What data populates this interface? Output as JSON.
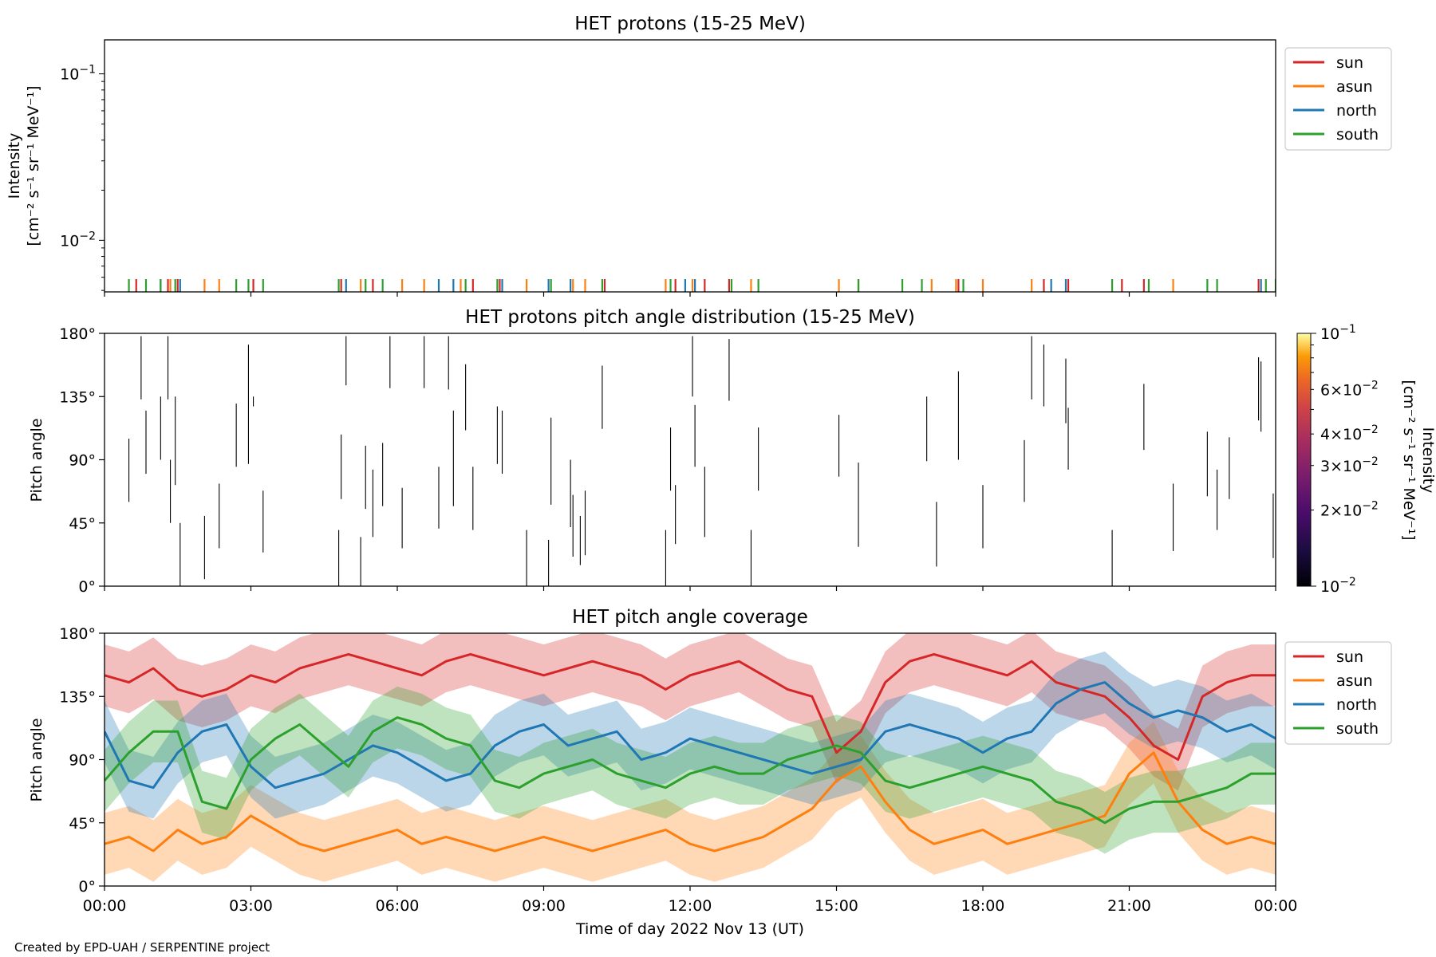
{
  "credit": "Created by EPD-UAH / SERPENTINE project",
  "colors": {
    "sun": "#d62728",
    "asun": "#ff7f0e",
    "north": "#1f77b4",
    "south": "#2ca02c"
  },
  "chart_data": [
    {
      "type": "line",
      "title": "HET protons (15-25 MeV)",
      "ylabel_line1": "Intensity",
      "ylabel_line2": "[cm⁻² s⁻¹ sr⁻¹ MeV⁻¹]",
      "yscale": "log",
      "ylim": [
        0.0049,
        0.16
      ],
      "yticks": [
        {
          "value": 0.01,
          "base": "10",
          "exp": "−2"
        },
        {
          "value": 0.1,
          "base": "10",
          "exp": "−1"
        }
      ],
      "legend": [
        "sun",
        "asun",
        "north",
        "south"
      ],
      "legend_position": "outside-right",
      "series": [
        {
          "name": "sun",
          "hours": [
            0.65,
            1.3,
            1.5,
            3.05,
            4.85,
            5.5,
            7.55,
            8.1,
            10.25,
            11.7,
            12.3,
            12.8,
            15.45,
            17.5,
            19.25,
            19.75,
            20.85,
            21.3,
            23.65
          ]
        },
        {
          "name": "asun",
          "hours": [
            1.35,
            2.05,
            2.35,
            5.25,
            6.1,
            6.55,
            7.3,
            8.65,
            9.6,
            9.85,
            11.5,
            12.05,
            13.25,
            15.05,
            16.95,
            17.45,
            18.0,
            19.0,
            21.9
          ]
        },
        {
          "name": "north",
          "hours": [
            1.15,
            1.55,
            4.95,
            6.85,
            7.15,
            8.15,
            9.1,
            9.55,
            11.9,
            12.1,
            19.4,
            19.7,
            23.7
          ]
        },
        {
          "name": "south",
          "hours": [
            0.5,
            0.85,
            1.15,
            1.45,
            2.7,
            2.95,
            3.25,
            4.8,
            5.35,
            5.7,
            7.4,
            8.05,
            9.15,
            10.2,
            11.6,
            12.85,
            13.4,
            15.45,
            16.35,
            16.75,
            17.6,
            20.65,
            21.4,
            22.6,
            22.8,
            23.8,
            24.0
          ]
        }
      ]
    },
    {
      "type": "heatmap",
      "title": "HET protons pitch angle distribution (15-25 MeV)",
      "ylabel": "Pitch angle",
      "ylim": [
        0,
        180
      ],
      "yticks": [
        "0°",
        "45°",
        "90°",
        "135°",
        "180°"
      ],
      "colorbar": {
        "label_line1": "Intensity",
        "label_line2": "[cm⁻² s⁻¹ sr⁻¹ MeV⁻¹]",
        "scale": "log",
        "range": [
          0.01,
          0.1
        ],
        "colormap": "inferno",
        "ticks": [
          {
            "value": 0.01,
            "mant": "",
            "base": "10",
            "exp": "−2"
          },
          {
            "value": 0.02,
            "mant": "2×",
            "base": "10",
            "exp": "−2"
          },
          {
            "value": 0.03,
            "mant": "3×",
            "base": "10",
            "exp": "−2"
          },
          {
            "value": 0.04,
            "mant": "4×",
            "base": "10",
            "exp": "−2"
          },
          {
            "value": 0.06,
            "mant": "6×",
            "base": "10",
            "exp": "−2"
          },
          {
            "value": 0.1,
            "mant": "",
            "base": "10",
            "exp": "−1"
          }
        ]
      },
      "marks": [
        [
          0.5,
          60,
          105
        ],
        [
          0.75,
          133,
          178
        ],
        [
          0.85,
          80,
          125
        ],
        [
          1.15,
          90,
          135
        ],
        [
          1.3,
          133,
          178
        ],
        [
          1.35,
          45,
          90
        ],
        [
          1.45,
          72,
          135
        ],
        [
          1.55,
          0,
          45
        ],
        [
          2.05,
          5,
          50
        ],
        [
          2.35,
          27,
          73
        ],
        [
          2.7,
          85,
          130
        ],
        [
          2.95,
          87,
          172
        ],
        [
          3.05,
          128,
          135
        ],
        [
          3.25,
          24,
          68
        ],
        [
          4.8,
          0,
          40
        ],
        [
          4.85,
          62,
          108
        ],
        [
          4.95,
          143,
          178
        ],
        [
          5.25,
          0,
          35
        ],
        [
          5.35,
          55,
          100
        ],
        [
          5.5,
          35,
          83
        ],
        [
          5.7,
          57,
          102
        ],
        [
          5.85,
          141,
          178
        ],
        [
          6.1,
          27,
          70
        ],
        [
          6.55,
          141,
          178
        ],
        [
          6.85,
          41,
          85
        ],
        [
          7.05,
          140,
          178
        ],
        [
          7.15,
          57,
          125
        ],
        [
          7.4,
          111,
          158
        ],
        [
          7.55,
          40,
          85
        ],
        [
          8.05,
          87,
          128
        ],
        [
          8.15,
          80,
          125
        ],
        [
          8.65,
          0,
          40
        ],
        [
          9.1,
          0,
          33
        ],
        [
          9.15,
          58,
          120
        ],
        [
          9.55,
          42,
          90
        ],
        [
          9.6,
          21,
          65
        ],
        [
          9.75,
          15,
          50
        ],
        [
          9.85,
          22,
          68
        ],
        [
          10.2,
          112,
          157
        ],
        [
          11.5,
          0,
          40
        ],
        [
          11.6,
          68,
          113
        ],
        [
          11.7,
          30,
          72
        ],
        [
          12.05,
          135,
          178
        ],
        [
          12.1,
          85,
          129
        ],
        [
          12.3,
          35,
          85
        ],
        [
          12.8,
          132,
          176
        ],
        [
          13.25,
          0,
          40
        ],
        [
          13.4,
          68,
          113
        ],
        [
          15.05,
          78,
          122
        ],
        [
          15.45,
          28,
          88
        ],
        [
          16.85,
          89,
          135
        ],
        [
          17.05,
          14,
          60
        ],
        [
          17.5,
          90,
          153
        ],
        [
          18.0,
          27,
          72
        ],
        [
          18.85,
          60,
          104
        ],
        [
          19.0,
          133,
          178
        ],
        [
          19.25,
          128,
          172
        ],
        [
          19.7,
          116,
          162
        ],
        [
          19.75,
          83,
          127
        ],
        [
          20.65,
          0,
          40
        ],
        [
          21.3,
          97,
          144
        ],
        [
          21.9,
          25,
          73
        ],
        [
          22.6,
          64,
          110
        ],
        [
          22.8,
          40,
          83
        ],
        [
          23.05,
          62,
          106
        ],
        [
          23.65,
          118,
          163
        ],
        [
          23.7,
          110,
          160
        ],
        [
          23.95,
          20,
          66
        ]
      ]
    },
    {
      "type": "area",
      "title": "HET pitch angle coverage",
      "ylabel": "Pitch angle",
      "xlabel": "Time of day 2022 Nov 13 (UT)",
      "ylim": [
        0,
        180
      ],
      "yticks": [
        "0°",
        "45°",
        "90°",
        "135°",
        "180°"
      ],
      "xlim_hours": [
        0,
        24
      ],
      "xticks": [
        "00:00",
        "03:00",
        "06:00",
        "09:00",
        "12:00",
        "15:00",
        "18:00",
        "21:00",
        "00:00"
      ],
      "legend": [
        "sun",
        "asun",
        "north",
        "south"
      ],
      "legend_position": "outside-right",
      "band_width_deg": 22,
      "hours": [
        0,
        0.5,
        1,
        1.5,
        2,
        2.5,
        3,
        3.5,
        4,
        4.5,
        5,
        5.5,
        6,
        6.5,
        7,
        7.5,
        8,
        8.5,
        9,
        9.5,
        10,
        10.5,
        11,
        11.5,
        12,
        12.5,
        13,
        13.5,
        14,
        14.5,
        15,
        15.5,
        16,
        16.5,
        17,
        17.5,
        18,
        18.5,
        19,
        19.5,
        20,
        20.5,
        21,
        21.5,
        22,
        22.5,
        23,
        23.5,
        24
      ],
      "series": [
        {
          "name": "sun",
          "values": [
            150,
            145,
            155,
            140,
            135,
            140,
            150,
            145,
            155,
            160,
            165,
            160,
            155,
            150,
            160,
            165,
            160,
            155,
            150,
            155,
            160,
            155,
            150,
            140,
            150,
            155,
            160,
            150,
            140,
            135,
            95,
            110,
            145,
            160,
            165,
            160,
            155,
            150,
            160,
            145,
            140,
            135,
            120,
            100,
            90,
            135,
            145,
            150,
            150
          ]
        },
        {
          "name": "asun",
          "values": [
            30,
            35,
            25,
            40,
            30,
            35,
            50,
            40,
            30,
            25,
            30,
            35,
            40,
            30,
            35,
            30,
            25,
            30,
            35,
            30,
            25,
            30,
            35,
            40,
            30,
            25,
            30,
            35,
            45,
            55,
            75,
            85,
            60,
            40,
            30,
            35,
            40,
            30,
            35,
            40,
            45,
            50,
            80,
            95,
            60,
            40,
            30,
            35,
            30
          ]
        },
        {
          "name": "north",
          "values": [
            110,
            75,
            70,
            95,
            110,
            115,
            85,
            70,
            75,
            80,
            90,
            100,
            95,
            85,
            75,
            80,
            100,
            110,
            115,
            100,
            105,
            110,
            90,
            95,
            105,
            100,
            95,
            90,
            85,
            80,
            85,
            90,
            110,
            115,
            110,
            105,
            95,
            105,
            110,
            130,
            140,
            145,
            130,
            120,
            125,
            120,
            110,
            115,
            105
          ]
        },
        {
          "name": "south",
          "values": [
            75,
            95,
            110,
            110,
            60,
            55,
            90,
            105,
            115,
            100,
            85,
            110,
            120,
            115,
            105,
            100,
            75,
            70,
            80,
            85,
            90,
            80,
            75,
            70,
            80,
            85,
            80,
            80,
            90,
            95,
            100,
            95,
            75,
            70,
            75,
            80,
            85,
            80,
            75,
            60,
            55,
            45,
            55,
            60,
            60,
            65,
            70,
            80,
            80
          ]
        }
      ]
    }
  ]
}
